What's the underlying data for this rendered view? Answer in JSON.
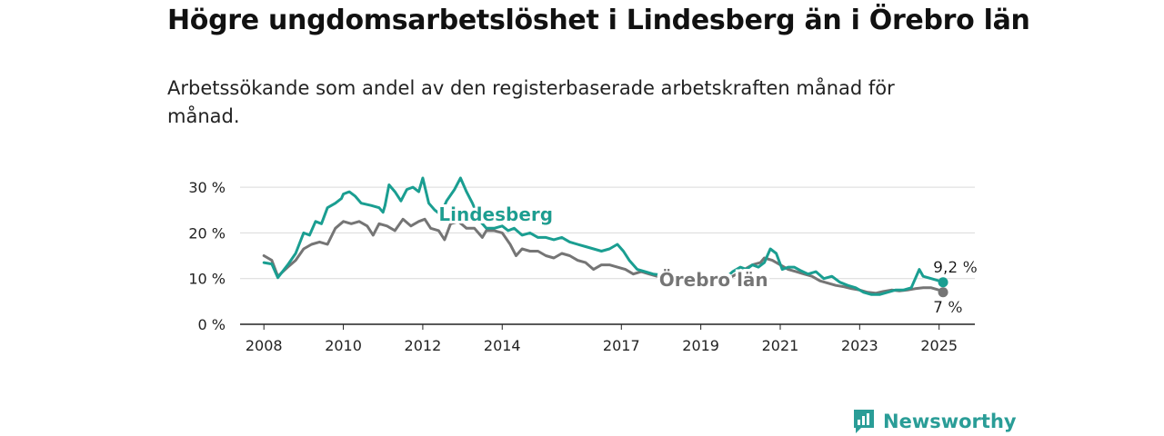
{
  "title": "Högre ungdomsarbetslöshet i Lindesberg än i Örebro län",
  "subtitle": "Arbetssökande som andel av den registerbaserade arbetskraften månad för månad.",
  "brand": {
    "name": "Newsworthy",
    "icon": "newsworthy-logo-icon"
  },
  "colors": {
    "lindesberg": "#1a9e91",
    "orebro": "#757575",
    "grid": "#d9d9d9",
    "axis": "#222222",
    "brand": "#2a9d97"
  },
  "chart_data": {
    "type": "line",
    "ylim": [
      0,
      32
    ],
    "yticks": [
      {
        "value": 0,
        "label": "0 %"
      },
      {
        "value": 10,
        "label": "10 %"
      },
      {
        "value": 20,
        "label": "20 %"
      },
      {
        "value": 30,
        "label": "30 %"
      }
    ],
    "xlim": [
      2007.4,
      2025.9
    ],
    "xticks": [
      {
        "value": 2008,
        "label": "2008"
      },
      {
        "value": 2010,
        "label": "2010"
      },
      {
        "value": 2012,
        "label": "2012"
      },
      {
        "value": 2014,
        "label": "2014"
      },
      {
        "value": 2017,
        "label": "2017"
      },
      {
        "value": 2019,
        "label": "2019"
      },
      {
        "value": 2021,
        "label": "2021"
      },
      {
        "value": 2023,
        "label": "2023"
      },
      {
        "value": 2025,
        "label": "2025"
      }
    ],
    "grid": true,
    "series": [
      {
        "name": "Lindesberg",
        "key": "lindesberg",
        "end_label": "9,2 %",
        "points": [
          [
            2008.0,
            13.5
          ],
          [
            2008.2,
            13.2
          ],
          [
            2008.35,
            10.2
          ],
          [
            2008.6,
            13.0
          ],
          [
            2008.8,
            15.5
          ],
          [
            2009.0,
            20.0
          ],
          [
            2009.15,
            19.5
          ],
          [
            2009.3,
            22.5
          ],
          [
            2009.45,
            22.0
          ],
          [
            2009.6,
            25.5
          ],
          [
            2009.8,
            26.5
          ],
          [
            2009.95,
            27.5
          ],
          [
            2010.0,
            28.5
          ],
          [
            2010.15,
            29.0
          ],
          [
            2010.3,
            28.0
          ],
          [
            2010.45,
            26.5
          ],
          [
            2010.7,
            26.0
          ],
          [
            2010.9,
            25.5
          ],
          [
            2011.0,
            24.5
          ],
          [
            2011.05,
            26.0
          ],
          [
            2011.15,
            30.5
          ],
          [
            2011.3,
            29.0
          ],
          [
            2011.45,
            27.0
          ],
          [
            2011.6,
            29.5
          ],
          [
            2011.75,
            30.0
          ],
          [
            2011.9,
            29.0
          ],
          [
            2012.0,
            32.0
          ],
          [
            2012.15,
            26.5
          ],
          [
            2012.3,
            25.0
          ],
          [
            2012.45,
            24.0
          ],
          [
            2012.6,
            27.0
          ],
          [
            2012.8,
            29.5
          ],
          [
            2012.95,
            32.0
          ],
          [
            2013.1,
            29.0
          ],
          [
            2013.25,
            26.5
          ],
          [
            2013.45,
            22.5
          ],
          [
            2013.6,
            21.0
          ],
          [
            2013.8,
            21.0
          ],
          [
            2014.0,
            21.5
          ],
          [
            2014.15,
            20.5
          ],
          [
            2014.3,
            21.0
          ],
          [
            2014.5,
            19.5
          ],
          [
            2014.7,
            20.0
          ],
          [
            2014.9,
            19.0
          ],
          [
            2015.1,
            19.0
          ],
          [
            2015.3,
            18.5
          ],
          [
            2015.5,
            19.0
          ],
          [
            2015.7,
            18.0
          ],
          [
            2015.9,
            17.5
          ],
          [
            2016.1,
            17.0
          ],
          [
            2016.3,
            16.5
          ],
          [
            2016.5,
            16.0
          ],
          [
            2016.7,
            16.5
          ],
          [
            2016.9,
            17.5
          ],
          [
            2017.05,
            16.0
          ],
          [
            2017.2,
            14.0
          ],
          [
            2017.4,
            12.0
          ],
          [
            2017.6,
            11.5
          ],
          [
            2017.8,
            11.0
          ],
          [
            2018.0,
            10.8
          ],
          [
            2018.2,
            10.5
          ],
          [
            2018.4,
            10.0
          ],
          [
            2018.6,
            10.0
          ],
          [
            2018.8,
            9.8
          ],
          [
            2019.0,
            9.5
          ],
          [
            2019.2,
            9.5
          ],
          [
            2019.4,
            9.8
          ],
          [
            2019.6,
            10.0
          ],
          [
            2019.8,
            11.5
          ],
          [
            2020.0,
            12.5
          ],
          [
            2020.15,
            12.0
          ],
          [
            2020.3,
            13.0
          ],
          [
            2020.45,
            12.5
          ],
          [
            2020.6,
            13.5
          ],
          [
            2020.75,
            16.5
          ],
          [
            2020.9,
            15.5
          ],
          [
            2021.05,
            12.0
          ],
          [
            2021.2,
            12.5
          ],
          [
            2021.35,
            12.5
          ],
          [
            2021.5,
            11.8
          ],
          [
            2021.7,
            11.0
          ],
          [
            2021.9,
            11.5
          ],
          [
            2022.1,
            10.0
          ],
          [
            2022.3,
            10.5
          ],
          [
            2022.5,
            9.2
          ],
          [
            2022.7,
            8.5
          ],
          [
            2022.9,
            8.0
          ],
          [
            2023.1,
            7.0
          ],
          [
            2023.3,
            6.5
          ],
          [
            2023.5,
            6.5
          ],
          [
            2023.7,
            7.0
          ],
          [
            2023.9,
            7.5
          ],
          [
            2024.1,
            7.5
          ],
          [
            2024.3,
            8.0
          ],
          [
            2024.5,
            12.0
          ],
          [
            2024.6,
            10.5
          ],
          [
            2024.8,
            10.0
          ],
          [
            2025.0,
            9.5
          ],
          [
            2025.1,
            9.2
          ]
        ]
      },
      {
        "name": "Örebro län",
        "key": "orebro",
        "end_label": "7 %",
        "points": [
          [
            2008.0,
            15.0
          ],
          [
            2008.2,
            14.0
          ],
          [
            2008.35,
            10.5
          ],
          [
            2008.6,
            12.5
          ],
          [
            2008.8,
            14.0
          ],
          [
            2009.0,
            16.5
          ],
          [
            2009.2,
            17.5
          ],
          [
            2009.4,
            18.0
          ],
          [
            2009.6,
            17.5
          ],
          [
            2009.8,
            21.0
          ],
          [
            2010.0,
            22.5
          ],
          [
            2010.2,
            22.0
          ],
          [
            2010.4,
            22.5
          ],
          [
            2010.6,
            21.5
          ],
          [
            2010.75,
            19.5
          ],
          [
            2010.9,
            22.0
          ],
          [
            2011.1,
            21.5
          ],
          [
            2011.3,
            20.5
          ],
          [
            2011.5,
            23.0
          ],
          [
            2011.7,
            21.5
          ],
          [
            2011.9,
            22.5
          ],
          [
            2012.05,
            23.0
          ],
          [
            2012.2,
            21.0
          ],
          [
            2012.4,
            20.5
          ],
          [
            2012.55,
            18.5
          ],
          [
            2012.7,
            22.0
          ],
          [
            2012.9,
            22.5
          ],
          [
            2013.1,
            21.0
          ],
          [
            2013.3,
            21.0
          ],
          [
            2013.5,
            19.0
          ],
          [
            2013.6,
            20.5
          ],
          [
            2013.8,
            20.5
          ],
          [
            2014.0,
            20.0
          ],
          [
            2014.2,
            17.5
          ],
          [
            2014.35,
            15.0
          ],
          [
            2014.5,
            16.5
          ],
          [
            2014.7,
            16.0
          ],
          [
            2014.9,
            16.0
          ],
          [
            2015.1,
            15.0
          ],
          [
            2015.3,
            14.5
          ],
          [
            2015.5,
            15.5
          ],
          [
            2015.7,
            15.0
          ],
          [
            2015.9,
            14.0
          ],
          [
            2016.1,
            13.5
          ],
          [
            2016.3,
            12.0
          ],
          [
            2016.5,
            13.0
          ],
          [
            2016.7,
            13.0
          ],
          [
            2016.9,
            12.5
          ],
          [
            2017.1,
            12.0
          ],
          [
            2017.3,
            11.0
          ],
          [
            2017.5,
            11.5
          ],
          [
            2017.7,
            11.0
          ],
          [
            2017.9,
            10.5
          ],
          [
            2018.1,
            10.0
          ],
          [
            2018.3,
            9.8
          ],
          [
            2018.5,
            9.5
          ],
          [
            2018.7,
            9.5
          ],
          [
            2018.9,
            9.3
          ],
          [
            2019.1,
            9.0
          ],
          [
            2019.3,
            9.2
          ],
          [
            2019.5,
            9.5
          ],
          [
            2019.7,
            10.0
          ],
          [
            2019.9,
            11.0
          ],
          [
            2020.1,
            12.0
          ],
          [
            2020.3,
            13.0
          ],
          [
            2020.5,
            13.5
          ],
          [
            2020.6,
            14.5
          ],
          [
            2020.8,
            14.0
          ],
          [
            2021.0,
            13.0
          ],
          [
            2021.2,
            12.0
          ],
          [
            2021.4,
            11.5
          ],
          [
            2021.6,
            11.0
          ],
          [
            2021.8,
            10.5
          ],
          [
            2022.0,
            9.5
          ],
          [
            2022.2,
            9.0
          ],
          [
            2022.4,
            8.5
          ],
          [
            2022.6,
            8.2
          ],
          [
            2022.8,
            7.8
          ],
          [
            2023.0,
            7.5
          ],
          [
            2023.2,
            7.0
          ],
          [
            2023.4,
            6.8
          ],
          [
            2023.6,
            7.2
          ],
          [
            2023.8,
            7.5
          ],
          [
            2024.0,
            7.3
          ],
          [
            2024.2,
            7.5
          ],
          [
            2024.4,
            7.8
          ],
          [
            2024.6,
            8.0
          ],
          [
            2024.8,
            8.0
          ],
          [
            2025.0,
            7.5
          ],
          [
            2025.1,
            7.0
          ]
        ]
      }
    ]
  }
}
